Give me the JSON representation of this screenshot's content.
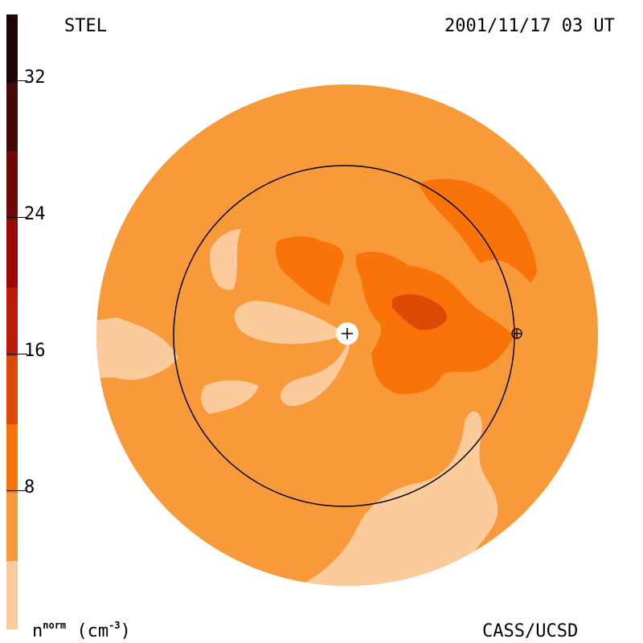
{
  "header": {
    "instrument": "STEL",
    "datetime": "2001/11/17 03 UT"
  },
  "footer": {
    "credit": "CASS/UCSD",
    "units_base": "n",
    "units_super": "norm",
    "units_rest": " (cm",
    "units_exp": "-3",
    "units_close": ")"
  },
  "colorbar": {
    "ticks": [
      "8",
      "16",
      "24",
      "32"
    ],
    "levels": [
      {
        "from": 0,
        "to": 4,
        "color": "#fbcb9c"
      },
      {
        "from": 4,
        "to": 8,
        "color": "#f99a3a"
      },
      {
        "from": 8,
        "to": 12,
        "color": "#f97308"
      },
      {
        "from": 12,
        "to": 16,
        "color": "#dd4a06"
      },
      {
        "from": 16,
        "to": 20,
        "color": "#bd1b09"
      },
      {
        "from": 20,
        "to": 24,
        "color": "#9c0808"
      },
      {
        "from": 24,
        "to": 28,
        "color": "#710808"
      },
      {
        "from": 28,
        "to": 32,
        "color": "#440808"
      },
      {
        "from": 32,
        "to": 36,
        "color": "#1e0404"
      }
    ]
  },
  "map": {
    "background_color": "#f99a3a",
    "markers": {
      "sun": "sun-plus-icon",
      "earth": "earth-circled-plus-icon"
    }
  }
}
